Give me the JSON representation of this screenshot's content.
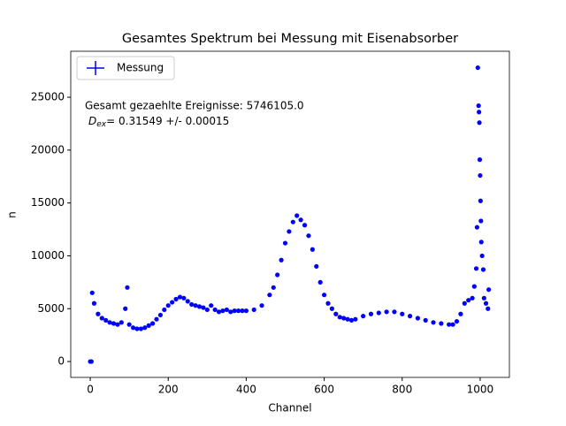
{
  "chart_data": {
    "type": "scatter",
    "title": "Gesamtes Spektrum bei Messung mit Eisenabsorber",
    "x_label": "Channel",
    "y_label": "n",
    "annotations": [
      "Gesamt gezaehlte Ereignisse: 5746105.0",
      {
        "symbol": "D",
        "subscript": "ex",
        "text": "= 0.31549 +/- 0.00015"
      }
    ],
    "legend": "upper left",
    "series": [
      {
        "name": "Messung",
        "color": "#0000ff",
        "x": [
          0,
          3,
          5,
          10,
          20,
          30,
          40,
          50,
          60,
          70,
          80,
          90,
          95,
          100,
          110,
          120,
          130,
          140,
          150,
          160,
          170,
          180,
          190,
          200,
          210,
          220,
          230,
          240,
          250,
          260,
          270,
          280,
          290,
          300,
          310,
          320,
          330,
          340,
          350,
          360,
          370,
          380,
          390,
          400,
          420,
          440,
          460,
          470,
          480,
          490,
          500,
          510,
          520,
          530,
          540,
          550,
          560,
          570,
          580,
          590,
          600,
          610,
          620,
          630,
          640,
          650,
          660,
          670,
          680,
          700,
          720,
          740,
          760,
          780,
          800,
          820,
          840,
          860,
          880,
          900,
          920,
          930,
          940,
          950,
          960,
          970,
          980,
          985,
          990,
          992,
          994,
          996,
          997,
          998,
          999,
          1000,
          1001,
          1002,
          1003,
          1005,
          1008,
          1010,
          1015,
          1020,
          1022
        ],
        "values": [
          0,
          0,
          6500,
          5500,
          4500,
          4100,
          3900,
          3700,
          3600,
          3500,
          3700,
          5000,
          7000,
          3500,
          3200,
          3100,
          3100,
          3200,
          3400,
          3600,
          4000,
          4400,
          4900,
          5300,
          5600,
          5900,
          6100,
          6000,
          5700,
          5400,
          5300,
          5200,
          5100,
          4900,
          5300,
          4900,
          4700,
          4800,
          4900,
          4700,
          4800,
          4800,
          4800,
          4800,
          4900,
          5300,
          6300,
          7000,
          8200,
          9600,
          11200,
          12300,
          13200,
          13800,
          13400,
          12900,
          11900,
          10600,
          9000,
          7500,
          6300,
          5500,
          5000,
          4500,
          4200,
          4100,
          4000,
          3900,
          4000,
          4300,
          4500,
          4600,
          4700,
          4700,
          4500,
          4300,
          4100,
          3900,
          3700,
          3600,
          3500,
          3500,
          3800,
          4500,
          5500,
          5800,
          6000,
          7100,
          8800,
          12700,
          27800,
          24200,
          23600,
          22600,
          19100,
          17600,
          15200,
          13300,
          11300,
          10000,
          8700,
          6000,
          5500,
          5000,
          6800
        ]
      }
    ],
    "xlim": [
      -50,
      1075
    ],
    "ylim": [
      -1500,
      29350
    ],
    "xticks": [
      0,
      200,
      400,
      600,
      800,
      1000
    ],
    "yticks": [
      0,
      5000,
      10000,
      15000,
      20000,
      25000
    ]
  }
}
